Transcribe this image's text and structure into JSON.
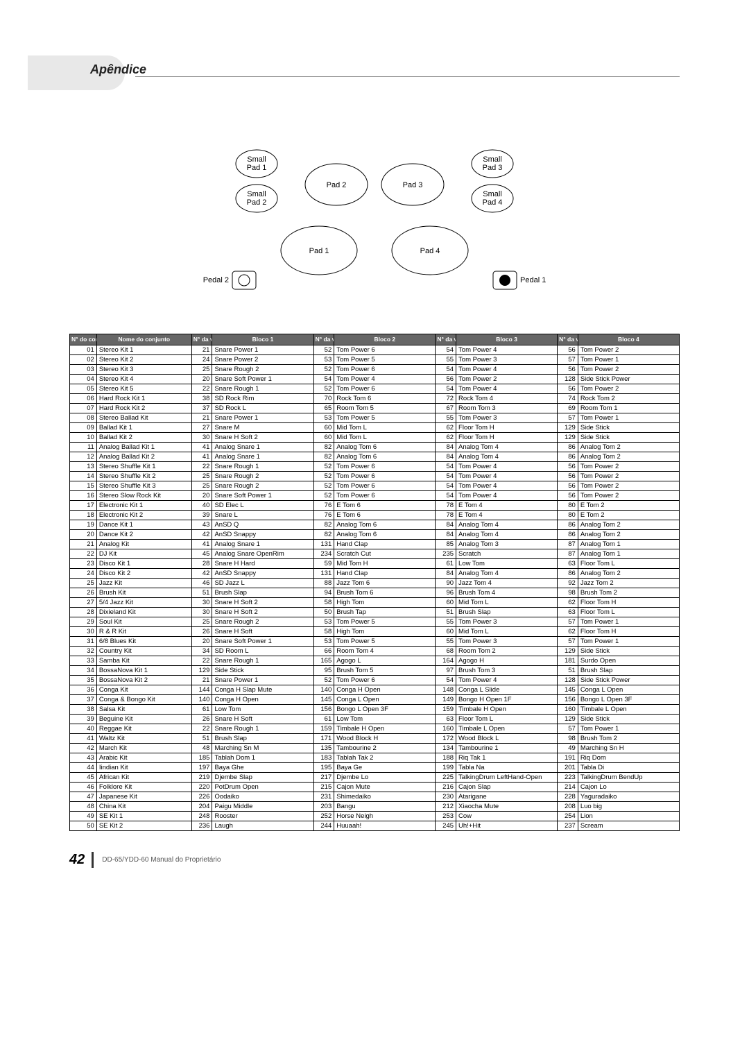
{
  "header": {
    "section": "Apêndice"
  },
  "diagram": {
    "labels": {
      "smallPad1": "Small\nPad 1",
      "smallPad2": "Small\nPad 2",
      "smallPad3": "Small\nPad 3",
      "smallPad4": "Small\nPad 4",
      "pad1": "Pad 1",
      "pad2": "Pad 2",
      "pad3": "Pad 3",
      "pad4": "Pad 4",
      "pedal1": "Pedal 1",
      "pedal2": "Pedal 2"
    }
  },
  "tableHeaders": {
    "kitNo": "N° do con-junto",
    "kitName": "Nome do conjunto",
    "voiceNo": "N° da voz",
    "b1": "Bloco 1",
    "b2": "Bloco 2",
    "b3": "Bloco 3",
    "b4": "Bloco 4"
  },
  "rows": [
    {
      "n": "01",
      "name": "Stereo Kit 1",
      "v1": 21,
      "b1": "Snare Power 1",
      "v2": 52,
      "b2": "Tom Power 6",
      "v3": 54,
      "b3": "Tom Power 4",
      "v4": 56,
      "b4": "Tom Power 2"
    },
    {
      "n": "02",
      "name": "Stereo Kit 2",
      "v1": 24,
      "b1": "Snare Power 2",
      "v2": 53,
      "b2": "Tom Power 5",
      "v3": 55,
      "b3": "Tom Power 3",
      "v4": 57,
      "b4": "Tom Power 1"
    },
    {
      "n": "03",
      "name": "Stereo Kit 3",
      "v1": 25,
      "b1": "Snare Rough 2",
      "v2": 52,
      "b2": "Tom Power 6",
      "v3": 54,
      "b3": "Tom Power 4",
      "v4": 56,
      "b4": "Tom Power 2"
    },
    {
      "n": "04",
      "name": "Stereo Kit 4",
      "v1": 20,
      "b1": "Snare Soft Power 1",
      "v2": 54,
      "b2": "Tom Power 4",
      "v3": 56,
      "b3": "Tom Power 2",
      "v4": 128,
      "b4": "Side Stick Power"
    },
    {
      "n": "05",
      "name": "Stereo Kit 5",
      "v1": 22,
      "b1": "Snare Rough 1",
      "v2": 52,
      "b2": "Tom Power 6",
      "v3": 54,
      "b3": "Tom Power 4",
      "v4": 56,
      "b4": "Tom Power 2"
    },
    {
      "n": "06",
      "name": "Hard Rock Kit 1",
      "v1": 38,
      "b1": "SD Rock Rim",
      "v2": 70,
      "b2": "Rock Tom 6",
      "v3": 72,
      "b3": "Rock Tom 4",
      "v4": 74,
      "b4": "Rock Tom 2"
    },
    {
      "n": "07",
      "name": "Hard Rock Kit 2",
      "v1": 37,
      "b1": "SD Rock L",
      "v2": 65,
      "b2": "Room Tom 5",
      "v3": 67,
      "b3": "Room Tom 3",
      "v4": 69,
      "b4": "Room Tom 1"
    },
    {
      "n": "08",
      "name": "Stereo Ballad Kit",
      "v1": 21,
      "b1": "Snare Power 1",
      "v2": 53,
      "b2": "Tom Power 5",
      "v3": 55,
      "b3": "Tom Power 3",
      "v4": 57,
      "b4": "Tom Power 1"
    },
    {
      "n": "09",
      "name": "Ballad Kit 1",
      "v1": 27,
      "b1": "Snare M",
      "v2": 60,
      "b2": "Mid Tom L",
      "v3": 62,
      "b3": "Floor Tom H",
      "v4": 129,
      "b4": "Side Stick"
    },
    {
      "n": "10",
      "name": "Ballad Kit 2",
      "v1": 30,
      "b1": "Snare H Soft 2",
      "v2": 60,
      "b2": "Mid Tom L",
      "v3": 62,
      "b3": "Floor Tom H",
      "v4": 129,
      "b4": "Side Stick"
    },
    {
      "n": "11",
      "name": "Analog Ballad Kit 1",
      "v1": 41,
      "b1": "Analog Snare 1",
      "v2": 82,
      "b2": "Analog Tom 6",
      "v3": 84,
      "b3": "Analog Tom 4",
      "v4": 86,
      "b4": "Analog Tom 2"
    },
    {
      "n": "12",
      "name": "Analog Ballad Kit 2",
      "v1": 41,
      "b1": "Analog Snare 1",
      "v2": 82,
      "b2": "Analog Tom 6",
      "v3": 84,
      "b3": "Analog Tom 4",
      "v4": 86,
      "b4": "Analog Tom 2"
    },
    {
      "n": "13",
      "name": "Stereo Shuffle Kit 1",
      "v1": 22,
      "b1": "Snare Rough 1",
      "v2": 52,
      "b2": "Tom Power 6",
      "v3": 54,
      "b3": "Tom Power 4",
      "v4": 56,
      "b4": "Tom Power 2"
    },
    {
      "n": "14",
      "name": "Stereo Shuffle Kit 2",
      "v1": 25,
      "b1": "Snare Rough 2",
      "v2": 52,
      "b2": "Tom Power 6",
      "v3": 54,
      "b3": "Tom Power 4",
      "v4": 56,
      "b4": "Tom Power 2"
    },
    {
      "n": "15",
      "name": "Stereo Shuffle Kit 3",
      "v1": 25,
      "b1": "Snare Rough 2",
      "v2": 52,
      "b2": "Tom Power 6",
      "v3": 54,
      "b3": "Tom Power 4",
      "v4": 56,
      "b4": "Tom Power 2"
    },
    {
      "n": "16",
      "name": "Stereo Slow Rock Kit",
      "v1": 20,
      "b1": "Snare Soft Power 1",
      "v2": 52,
      "b2": "Tom Power 6",
      "v3": 54,
      "b3": "Tom Power 4",
      "v4": 56,
      "b4": "Tom Power 2"
    },
    {
      "n": "17",
      "name": "Electronic Kit 1",
      "v1": 40,
      "b1": "SD Elec L",
      "v2": 76,
      "b2": "E Tom 6",
      "v3": 78,
      "b3": "E Tom 4",
      "v4": 80,
      "b4": "E Tom 2"
    },
    {
      "n": "18",
      "name": "Electronic Kit 2",
      "v1": 39,
      "b1": "Snare L",
      "v2": 76,
      "b2": "E Tom 6",
      "v3": 78,
      "b3": "E Tom 4",
      "v4": 80,
      "b4": "E Tom 2"
    },
    {
      "n": "19",
      "name": "Dance Kit 1",
      "v1": 43,
      "b1": "AnSD Q",
      "v2": 82,
      "b2": "Analog Tom 6",
      "v3": 84,
      "b3": "Analog Tom 4",
      "v4": 86,
      "b4": "Analog Tom 2"
    },
    {
      "n": "20",
      "name": "Dance Kit 2",
      "v1": 42,
      "b1": "AnSD Snappy",
      "v2": 82,
      "b2": "Analog Tom 6",
      "v3": 84,
      "b3": "Analog Tom 4",
      "v4": 86,
      "b4": "Analog Tom 2"
    },
    {
      "n": "21",
      "name": "Analog Kit",
      "v1": 41,
      "b1": "Analog Snare 1",
      "v2": 131,
      "b2": "Hand Clap",
      "v3": 85,
      "b3": "Analog Tom 3",
      "v4": 87,
      "b4": "Analog Tom 1"
    },
    {
      "n": "22",
      "name": "DJ Kit",
      "v1": 45,
      "b1": "Analog Snare OpenRim",
      "v2": 234,
      "b2": "Scratch Cut",
      "v3": 235,
      "b3": "Scratch",
      "v4": 87,
      "b4": "Analog Tom 1"
    },
    {
      "n": "23",
      "name": "Disco Kit 1",
      "v1": 28,
      "b1": "Snare H Hard",
      "v2": 59,
      "b2": "Mid Tom H",
      "v3": 61,
      "b3": "Low Tom",
      "v4": 63,
      "b4": "Floor Tom L"
    },
    {
      "n": "24",
      "name": "Disco Kit 2",
      "v1": 42,
      "b1": "AnSD Snappy",
      "v2": 131,
      "b2": "Hand Clap",
      "v3": 84,
      "b3": "Analog Tom 4",
      "v4": 86,
      "b4": "Analog Tom 2"
    },
    {
      "n": "25",
      "name": "Jazz Kit",
      "v1": 46,
      "b1": "SD Jazz L",
      "v2": 88,
      "b2": "Jazz Tom 6",
      "v3": 90,
      "b3": "Jazz Tom 4",
      "v4": 92,
      "b4": "Jazz Tom 2"
    },
    {
      "n": "26",
      "name": "Brush Kit",
      "v1": 51,
      "b1": "Brush Slap",
      "v2": 94,
      "b2": "Brush Tom 6",
      "v3": 96,
      "b3": "Brush Tom 4",
      "v4": 98,
      "b4": "Brush Tom 2"
    },
    {
      "n": "27",
      "name": "5/4 Jazz Kit",
      "v1": 30,
      "b1": "Snare H Soft 2",
      "v2": 58,
      "b2": "High Tom",
      "v3": 60,
      "b3": "Mid Tom L",
      "v4": 62,
      "b4": "Floor Tom H"
    },
    {
      "n": "28",
      "name": "Dixieland Kit",
      "v1": 30,
      "b1": "Snare H Soft 2",
      "v2": 50,
      "b2": "Brush Tap",
      "v3": 51,
      "b3": "Brush Slap",
      "v4": 63,
      "b4": "Floor Tom L"
    },
    {
      "n": "29",
      "name": "Soul Kit",
      "v1": 25,
      "b1": "Snare Rough 2",
      "v2": 53,
      "b2": "Tom Power 5",
      "v3": 55,
      "b3": "Tom Power 3",
      "v4": 57,
      "b4": "Tom Power 1"
    },
    {
      "n": "30",
      "name": "R & R Kit",
      "v1": 26,
      "b1": "Snare H Soft",
      "v2": 58,
      "b2": "High Tom",
      "v3": 60,
      "b3": "Mid Tom L",
      "v4": 62,
      "b4": "Floor Tom H"
    },
    {
      "n": "31",
      "name": "6/8 Blues Kit",
      "v1": 20,
      "b1": "Snare Soft Power 1",
      "v2": 53,
      "b2": "Tom Power 5",
      "v3": 55,
      "b3": "Tom Power 3",
      "v4": 57,
      "b4": "Tom Power 1"
    },
    {
      "n": "32",
      "name": "Country Kit",
      "v1": 34,
      "b1": "SD Room L",
      "v2": 66,
      "b2": "Room Tom 4",
      "v3": 68,
      "b3": "Room Tom 2",
      "v4": 129,
      "b4": "Side Stick"
    },
    {
      "n": "33",
      "name": "Samba Kit",
      "v1": 22,
      "b1": "Snare Rough 1",
      "v2": 165,
      "b2": "Agogo L",
      "v3": 164,
      "b3": "Agogo H",
      "v4": 181,
      "b4": "Surdo Open"
    },
    {
      "n": "34",
      "name": "BossaNova Kit 1",
      "v1": 129,
      "b1": "Side Stick",
      "v2": 95,
      "b2": "Brush Tom 5",
      "v3": 97,
      "b3": "Brush Tom 3",
      "v4": 51,
      "b4": "Brush Slap"
    },
    {
      "n": "35",
      "name": "BossaNova Kit 2",
      "v1": 21,
      "b1": "Snare Power 1",
      "v2": 52,
      "b2": "Tom Power 6",
      "v3": 54,
      "b3": "Tom Power 4",
      "v4": 128,
      "b4": "Side Stick Power"
    },
    {
      "n": "36",
      "name": "Conga Kit",
      "v1": 144,
      "b1": "Conga H Slap Mute",
      "v2": 140,
      "b2": "Conga H Open",
      "v3": 148,
      "b3": "Conga L Slide",
      "v4": 145,
      "b4": "Conga L Open"
    },
    {
      "n": "37",
      "name": "Conga & Bongo Kit",
      "v1": 140,
      "b1": "Conga H Open",
      "v2": 145,
      "b2": "Conga L Open",
      "v3": 149,
      "b3": "Bongo H Open 1F",
      "v4": 156,
      "b4": "Bongo L Open 3F"
    },
    {
      "n": "38",
      "name": "Salsa Kit",
      "v1": 61,
      "b1": "Low Tom",
      "v2": 156,
      "b2": "Bongo L Open 3F",
      "v3": 159,
      "b3": "Timbale H Open",
      "v4": 160,
      "b4": "Timbale L Open"
    },
    {
      "n": "39",
      "name": "Beguine Kit",
      "v1": 26,
      "b1": "Snare H Soft",
      "v2": 61,
      "b2": "Low Tom",
      "v3": 63,
      "b3": "Floor Tom L",
      "v4": 129,
      "b4": "Side Stick"
    },
    {
      "n": "40",
      "name": "Reggae Kit",
      "v1": 22,
      "b1": "Snare Rough 1",
      "v2": 159,
      "b2": "Timbale H Open",
      "v3": 160,
      "b3": "Timbale L Open",
      "v4": 57,
      "b4": "Tom Power 1"
    },
    {
      "n": "41",
      "name": "Waltz Kit",
      "v1": 51,
      "b1": "Brush Slap",
      "v2": 171,
      "b2": "Wood Block H",
      "v3": 172,
      "b3": "Wood Block L",
      "v4": 98,
      "b4": "Brush Tom 2"
    },
    {
      "n": "42",
      "name": "March Kit",
      "v1": 48,
      "b1": "Marching Sn M",
      "v2": 135,
      "b2": "Tambourine 2",
      "v3": 134,
      "b3": "Tambourine 1",
      "v4": 49,
      "b4": "Marching Sn H"
    },
    {
      "n": "43",
      "name": "Arabic Kit",
      "v1": 185,
      "b1": "Tablah Dom 1",
      "v2": 183,
      "b2": "Tablah Tak 2",
      "v3": 188,
      "b3": "Riq Tak 1",
      "v4": 191,
      "b4": "Riq Dom"
    },
    {
      "n": "44",
      "name": "Iindian Kit",
      "v1": 197,
      "b1": "Baya Ghe",
      "v2": 195,
      "b2": "Baya Ge",
      "v3": 199,
      "b3": "Tabla Na",
      "v4": 201,
      "b4": "Tabla Di"
    },
    {
      "n": "45",
      "name": "African Kit",
      "v1": 219,
      "b1": "Djembe Slap",
      "v2": 217,
      "b2": "Djembe Lo",
      "v3": 225,
      "b3": "TalkingDrum LeftHand-Open",
      "v4": 223,
      "b4": "TalkingDrum BendUp"
    },
    {
      "n": "46",
      "name": "Folklore Kit",
      "v1": 220,
      "b1": "PotDrum Open",
      "v2": 215,
      "b2": "Cajon Mute",
      "v3": 216,
      "b3": "Cajon Slap",
      "v4": 214,
      "b4": "Cajon Lo"
    },
    {
      "n": "47",
      "name": "Japanese Kit",
      "v1": 226,
      "b1": "Oodaiko",
      "v2": 231,
      "b2": "Shimedaiko",
      "v3": 230,
      "b3": "Atarigane",
      "v4": 228,
      "b4": "Yaguradaiko"
    },
    {
      "n": "48",
      "name": "China Kit",
      "v1": 204,
      "b1": "Paigu Middle",
      "v2": 203,
      "b2": "Bangu",
      "v3": 212,
      "b3": "Xiaocha Mute",
      "v4": 208,
      "b4": "Luo big"
    },
    {
      "n": "49",
      "name": "SE Kit 1",
      "v1": 248,
      "b1": "Rooster",
      "v2": 252,
      "b2": "Horse Neigh",
      "v3": 253,
      "b3": "Cow",
      "v4": 254,
      "b4": "Lion"
    },
    {
      "n": "50",
      "name": "SE Kit 2",
      "v1": 236,
      "b1": "Laugh",
      "v2": 244,
      "b2": "Huuaah!",
      "v3": 245,
      "b3": "Uh!+Hit",
      "v4": 237,
      "b4": "Scream"
    }
  ],
  "footer": {
    "pageNum": "42",
    "text": "DD-65/YDD-60   Manual do Proprietário"
  }
}
